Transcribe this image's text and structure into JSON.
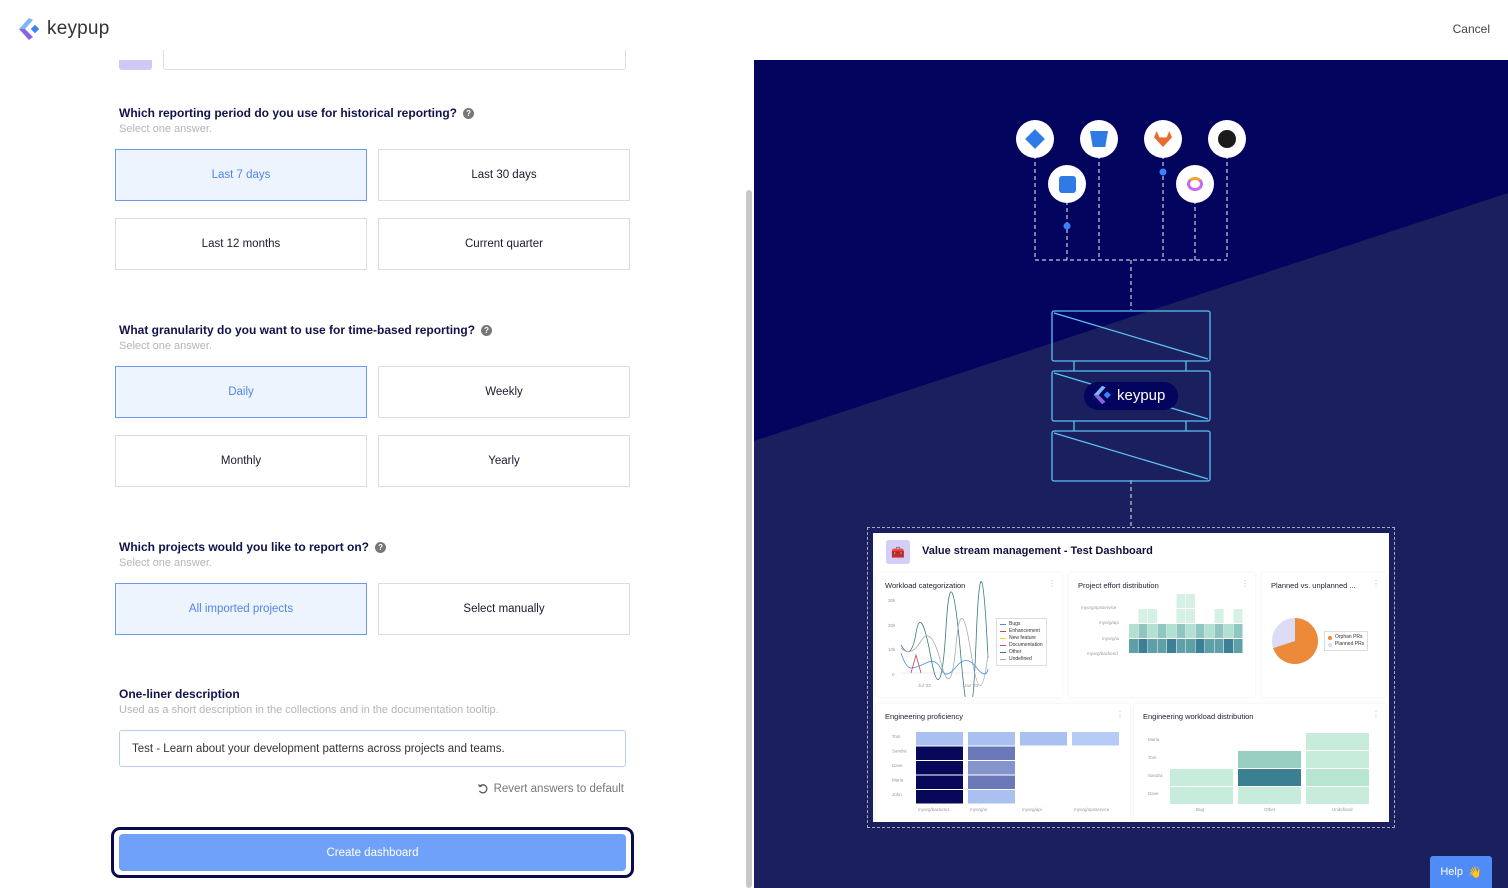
{
  "header": {
    "brand": "keypup",
    "cancel_label": "Cancel"
  },
  "questions": [
    {
      "title": "Which reporting period do you use for historical reporting?",
      "subtitle": "Select one answer.",
      "options": [
        "Last 7 days",
        "Last 30 days",
        "Last 12 months",
        "Current quarter"
      ],
      "selected": "Last 7 days"
    },
    {
      "title": "What granularity do you want to use for time-based reporting?",
      "subtitle": "Select one answer.",
      "options": [
        "Daily",
        "Weekly",
        "Monthly",
        "Yearly"
      ],
      "selected": "Daily"
    },
    {
      "title": "Which projects would you like to report on?",
      "subtitle": "Select one answer.",
      "options": [
        "All imported projects",
        "Select manually"
      ],
      "selected": "All imported projects"
    }
  ],
  "description": {
    "title": "One-liner description",
    "subtitle": "Used as a short description in the collections and in the documentation tooltip.",
    "value": "Test - Learn about your development patterns across projects and teams."
  },
  "revert_label": "Revert answers to default",
  "create_label": "Create dashboard",
  "help_label": "Help",
  "help_emoji": "👋",
  "illustration": {
    "integrations": [
      "jira-icon",
      "bitbucket-icon",
      "gitlab-icon",
      "github-icon",
      "trello-icon",
      "clickup-icon"
    ],
    "brand": "keypup",
    "dashboard": {
      "title": "Value stream management - Test Dashboard",
      "workload": {
        "title": "Workload categorization",
        "yticks": [
          "30k",
          "20k",
          "10k",
          "0"
        ],
        "xticks": [
          "Jul '22",
          "Jan '23"
        ],
        "legend": [
          "Bugs",
          "Enhancement",
          "New feature",
          "Documentation",
          "Other",
          "Undefined"
        ],
        "legend_colors": [
          "#4a8fe0",
          "#d0405a",
          "#e8d43a",
          "#c0506a",
          "#3a7a7a",
          "#aaaaaa"
        ]
      },
      "effort": {
        "title": "Project effort distribution",
        "rows": [
          "myorg/opsservice",
          "myorg/api",
          "myorg/ui",
          "myorg/backend"
        ]
      },
      "planned": {
        "title": "Planned vs. unplanned ...",
        "legend": [
          "Orphan PRs",
          "Planned PRs"
        ],
        "colors": [
          "#ec8a3a",
          "#dcdcf6"
        ],
        "orphan_share": 0.7
      },
      "proficiency": {
        "title": "Engineering proficiency",
        "rows": [
          "Tom",
          "Sandra",
          "Dave",
          "Maria",
          "John"
        ],
        "cols": [
          "myorg/backend",
          "myorg/ui",
          "myorg/api",
          "myorg/opsservice"
        ]
      },
      "workload_dist": {
        "title": "Engineering workload distribution",
        "rows": [
          "Maria",
          "Tom",
          "Sandra",
          "Dave"
        ],
        "cols": [
          "Bug",
          "Other",
          "Undefined"
        ]
      }
    }
  },
  "colors": {
    "accent": "#4f86e8",
    "selected_bg": "#eef4fe",
    "create_button": "#6ea1f7",
    "panel_bg": "#03045e",
    "help": "#4f8cf7"
  }
}
